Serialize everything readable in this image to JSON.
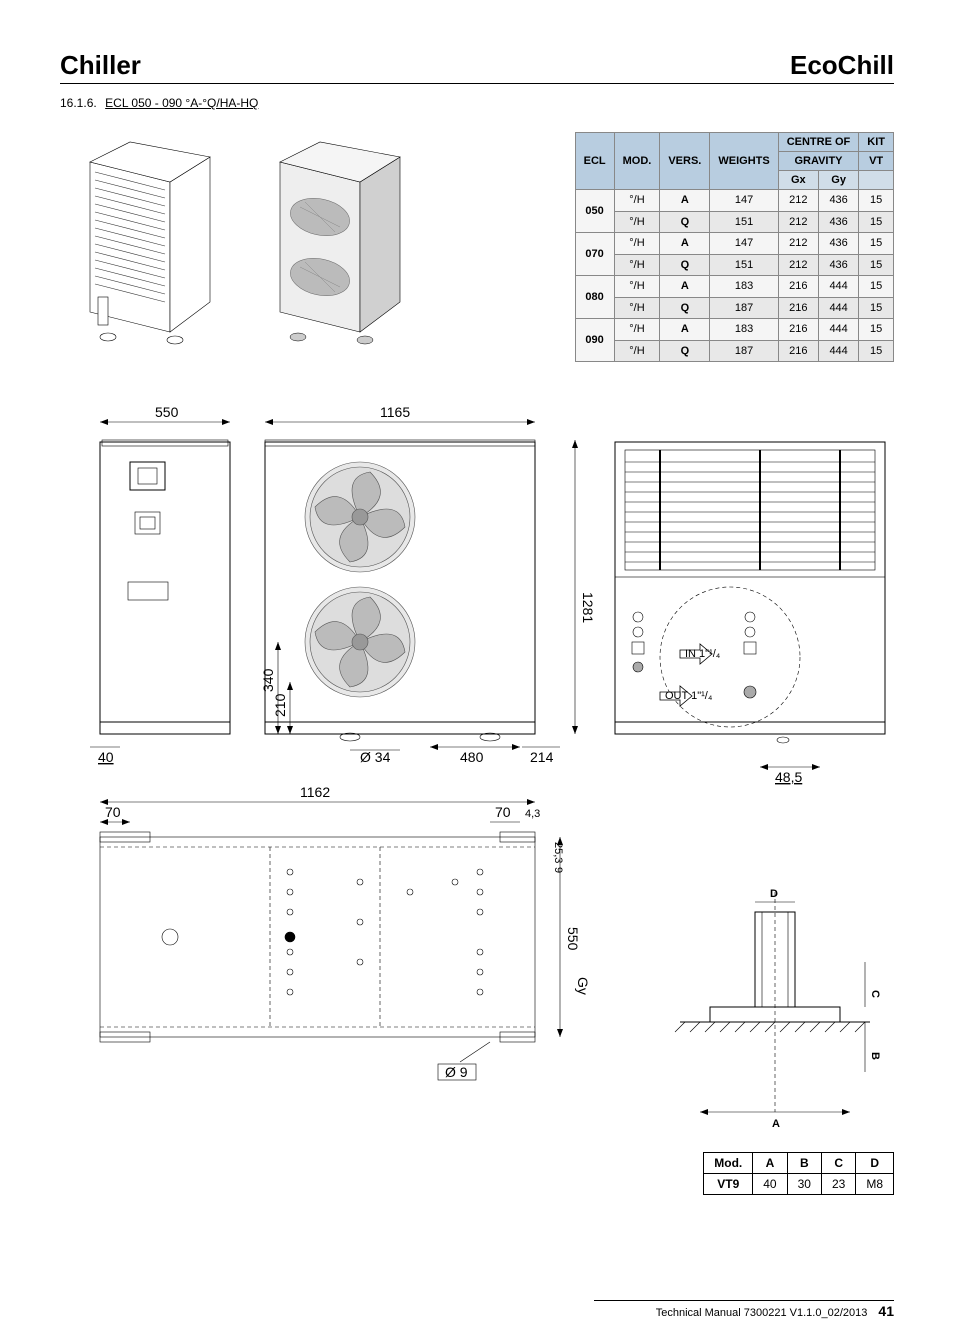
{
  "header": {
    "left": "Chiller",
    "right": "EcoChill"
  },
  "section": {
    "num": "16.1.6.",
    "title": "ECL 050 - 090 °A-°Q/HA-HQ"
  },
  "specTable": {
    "headers": [
      "ECL",
      "MOD.",
      "VERS.",
      "WEIGHTS",
      "CENTRE OF GRAVITY",
      "KIT VT"
    ],
    "sub": [
      "Gx",
      "Gy"
    ],
    "rows": [
      {
        "ecl": "050",
        "mod": "°/H",
        "vers": "A",
        "w": "147",
        "gx": "212",
        "gy": "436",
        "kit": "15"
      },
      {
        "ecl": "",
        "mod": "°/H",
        "vers": "Q",
        "w": "151",
        "gx": "212",
        "gy": "436",
        "kit": "15"
      },
      {
        "ecl": "070",
        "mod": "°/H",
        "vers": "A",
        "w": "147",
        "gx": "212",
        "gy": "436",
        "kit": "15"
      },
      {
        "ecl": "",
        "mod": "°/H",
        "vers": "Q",
        "w": "151",
        "gx": "212",
        "gy": "436",
        "kit": "15"
      },
      {
        "ecl": "080",
        "mod": "°/H",
        "vers": "A",
        "w": "183",
        "gx": "216",
        "gy": "444",
        "kit": "15"
      },
      {
        "ecl": "",
        "mod": "°/H",
        "vers": "Q",
        "w": "187",
        "gx": "216",
        "gy": "444",
        "kit": "15"
      },
      {
        "ecl": "090",
        "mod": "°/H",
        "vers": "A",
        "w": "183",
        "gx": "216",
        "gy": "444",
        "kit": "15"
      },
      {
        "ecl": "",
        "mod": "°/H",
        "vers": "Q",
        "w": "187",
        "gx": "216",
        "gy": "444",
        "kit": "15"
      }
    ]
  },
  "dims": {
    "d550": "550",
    "d1165": "1165",
    "d1281": "1281",
    "d40": "40",
    "d34": "Ø 34",
    "d480": "480",
    "d214": "214",
    "d1162": "1162",
    "d70a": "70",
    "d70b": "70",
    "d43": "4,3",
    "d253": "25,3",
    "d9s": "9",
    "d550b": "550",
    "gy": "Gy",
    "d9": "Ø 9",
    "d485": "48,5",
    "d210": "210",
    "d340": "340",
    "in": "IN 1\"¹/₄",
    "out": "OUT 1\"¹/₄",
    "bracket": {
      "A": "A",
      "B": "B",
      "C": "C",
      "D": "D"
    }
  },
  "modTable": {
    "headers": [
      "Mod.",
      "A",
      "B",
      "C",
      "D"
    ],
    "row": [
      "VT9",
      "40",
      "30",
      "23",
      "M8"
    ]
  },
  "footer": {
    "text": "Technical Manual 7300221 V1.1.0_02/2013",
    "page": "41"
  }
}
